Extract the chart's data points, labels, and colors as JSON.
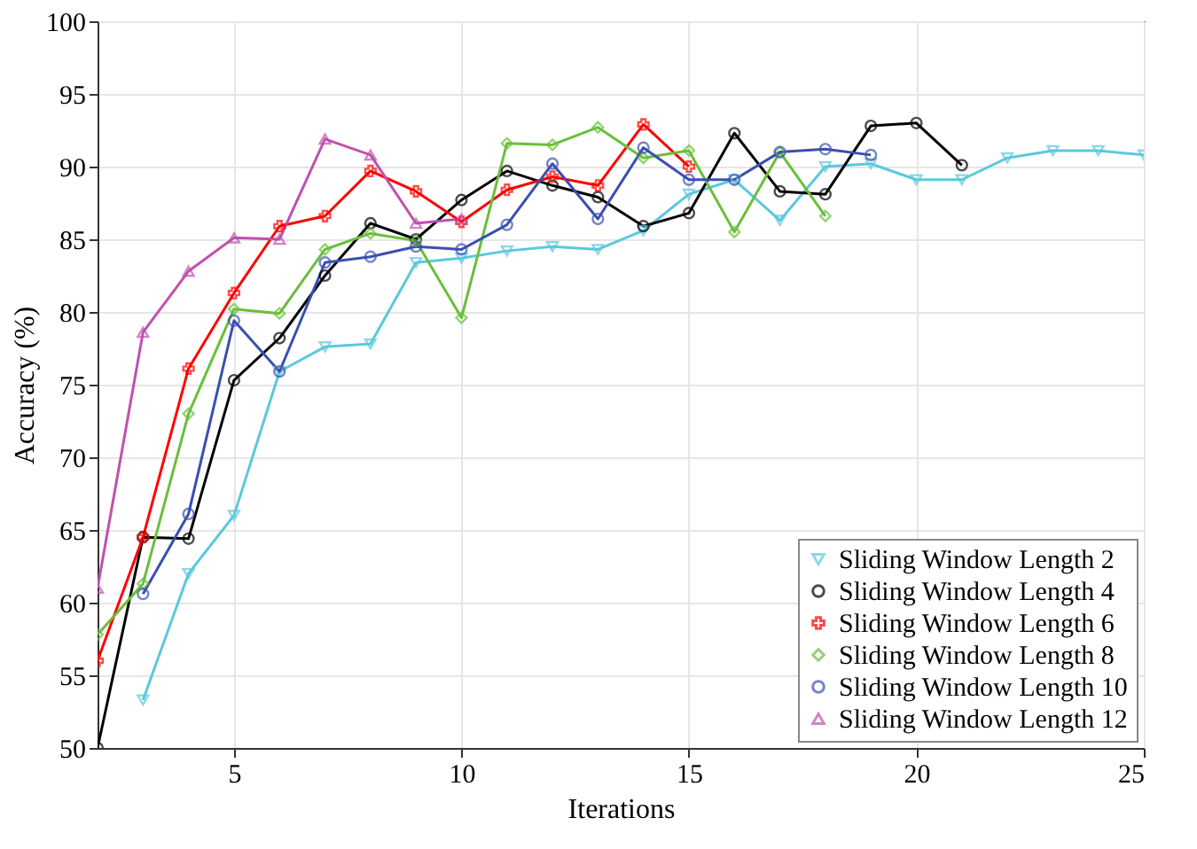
{
  "chart_data": {
    "type": "line",
    "xlabel": "Iterations",
    "ylabel": "Accuracy (%)",
    "xlim": [
      2,
      25
    ],
    "xticks": [
      5,
      10,
      15,
      20,
      25
    ],
    "ylim": [
      50,
      100
    ],
    "yticks": [
      50,
      55,
      60,
      65,
      70,
      75,
      80,
      85,
      90,
      95,
      100
    ],
    "grid": true,
    "legend": "bottom right",
    "line_style": "solid",
    "series": [
      {
        "name": "Sliding Window Length 2",
        "color": "#5bc8de",
        "marker": "triangle-down",
        "x": [
          3,
          4,
          5,
          6,
          7,
          8,
          9,
          10,
          11,
          12,
          13,
          14,
          15,
          16,
          17,
          18,
          19,
          20,
          21,
          22,
          23,
          24,
          25
        ],
        "values": [
          53.3,
          62,
          66,
          75.9,
          77.6,
          77.8,
          83.4,
          83.7,
          84.2,
          84.5,
          84.3,
          85.6,
          88.1,
          89.1,
          86.3,
          90,
          90.2,
          89.1,
          89.1,
          90.6,
          91.1,
          91.1,
          90.8
        ]
      },
      {
        "name": "Sliding Window Length 4",
        "color": "#000000",
        "marker": "circle",
        "x": [
          2,
          3,
          4,
          5,
          6,
          7,
          8,
          9,
          10,
          11,
          12,
          13,
          14,
          15,
          16,
          17,
          18,
          19,
          20,
          21
        ],
        "values": [
          50,
          64.5,
          64.4,
          75.3,
          78.2,
          82.5,
          86.1,
          85,
          87.7,
          89.7,
          88.7,
          87.9,
          85.9,
          86.8,
          92.3,
          88.3,
          88.1,
          92.8,
          93,
          90.1
        ]
      },
      {
        "name": "Sliding Window Length 6",
        "color": "#ff0000",
        "marker": "cross",
        "x": [
          2,
          3,
          4,
          5,
          6,
          7,
          8,
          9,
          10,
          11,
          12,
          13,
          14,
          15
        ],
        "values": [
          56,
          64.5,
          76.1,
          81.3,
          85.9,
          86.6,
          89.7,
          88.3,
          86.2,
          88.4,
          89.3,
          88.7,
          92.9,
          90
        ]
      },
      {
        "name": "Sliding Window Length 8",
        "color": "#6abf3a",
        "marker": "diamond",
        "x": [
          2,
          3,
          4,
          5,
          6,
          7,
          8,
          9,
          10,
          11,
          12,
          13,
          14,
          15,
          16,
          17,
          18
        ],
        "values": [
          57.8,
          61.3,
          73,
          80.2,
          79.9,
          84.3,
          85.4,
          84.9,
          79.6,
          91.6,
          91.5,
          92.7,
          90.6,
          91.1,
          85.5,
          91,
          86.6
        ]
      },
      {
        "name": "Sliding Window Length 10",
        "color": "#3a4fb0",
        "marker": "circle",
        "x": [
          3,
          4,
          5,
          6,
          7,
          8,
          9,
          10,
          11,
          12,
          13,
          14,
          15,
          16,
          17,
          18,
          19
        ],
        "values": [
          60.6,
          66.1,
          79.4,
          75.9,
          83.4,
          83.8,
          84.5,
          84.3,
          86,
          90.2,
          86.4,
          91.3,
          89.1,
          89.1,
          91,
          91.2,
          90.8
        ]
      },
      {
        "name": "Sliding Window Length 12",
        "color": "#c050b0",
        "marker": "triangle-up",
        "x": [
          2,
          3,
          4,
          5,
          6,
          7,
          8,
          9,
          10
        ],
        "values": [
          61,
          78.6,
          82.8,
          85.1,
          85,
          91.9,
          90.8,
          86.1,
          86.4
        ]
      }
    ]
  }
}
